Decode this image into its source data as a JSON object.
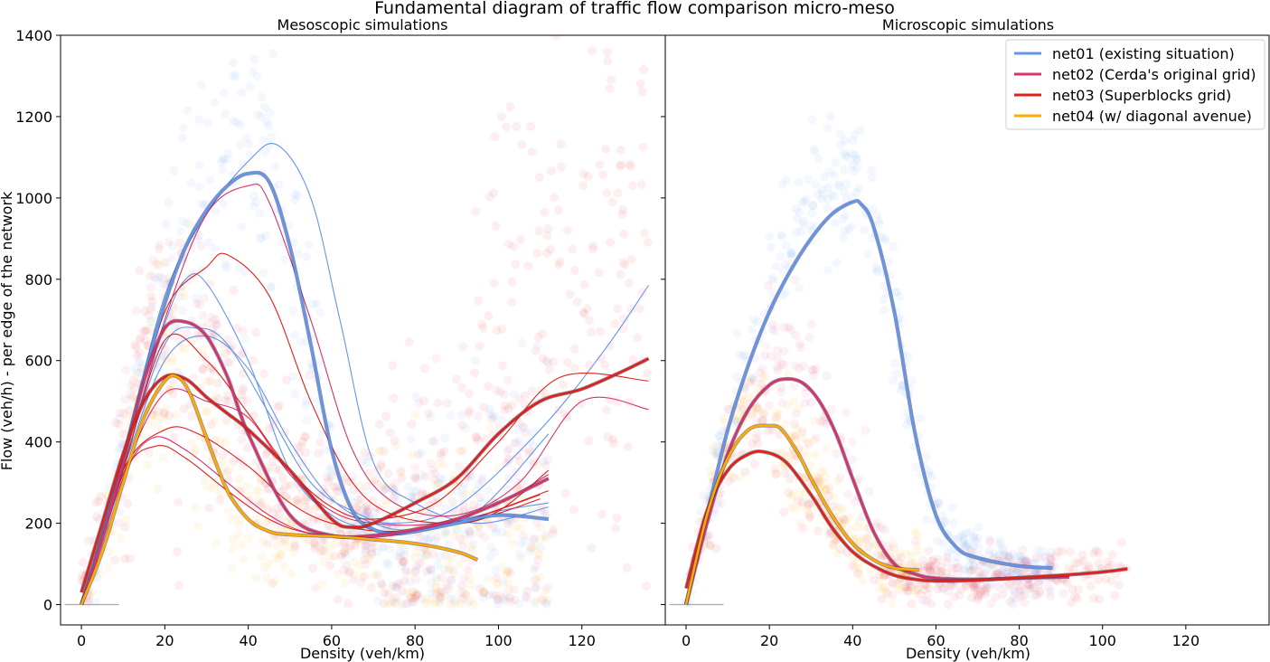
{
  "figure": {
    "title": "Fundamental diagram of traffic flow comparison micro-meso",
    "ylabel": "Flow (veh/h) - per edge of the network"
  },
  "colors": {
    "net01": "#6495ed",
    "net02": "#d6336c",
    "net03": "#e0201b",
    "net04": "#ffaa00"
  },
  "legend": {
    "placement": "upper-right of right panel",
    "items": [
      {
        "key": "net01",
        "label": "net01 (existing situation)"
      },
      {
        "key": "net02",
        "label": "net02 (Cerda's original grid)"
      },
      {
        "key": "net03",
        "label": "net03 (Superblocks grid)"
      },
      {
        "key": "net04",
        "label": "net04 (w/ diagonal avenue)"
      }
    ]
  },
  "chart_data": [
    {
      "type": "scatter",
      "title": "Mesoscopic simulations",
      "xlabel": "Density (veh/km)",
      "ylabel": "Flow (veh/h) - per edge of the network",
      "xlim": [
        -5,
        140
      ],
      "ylim": [
        -50,
        1400
      ],
      "xticks": [
        0,
        20,
        40,
        60,
        80,
        100,
        120
      ],
      "yticks": [
        0,
        200,
        400,
        600,
        800,
        1000,
        1200,
        1400
      ],
      "grid": false,
      "series": [
        {
          "key": "net01",
          "name": "net01 (existing situation)",
          "mean_x": [
            0,
            5,
            10,
            15,
            20,
            25,
            30,
            35,
            40,
            45,
            50,
            55,
            60,
            65,
            70,
            75,
            80,
            90,
            100,
            112
          ],
          "mean_y": [
            0,
            170,
            360,
            560,
            740,
            880,
            970,
            1030,
            1060,
            1040,
            880,
            640,
            380,
            230,
            185,
            175,
            180,
            200,
            220,
            210
          ],
          "runs": [
            {
              "x": [
                0,
                10,
                20,
                30,
                40,
                47,
                55,
                62,
                70,
                80,
                95,
                112
              ],
              "y": [
                0,
                360,
                760,
                960,
                1090,
                1130,
                1000,
                700,
                350,
                250,
                200,
                240
              ]
            },
            {
              "x": [
                0,
                10,
                20,
                25,
                30,
                40,
                50,
                60,
                70,
                80,
                95,
                112
              ],
              "y": [
                0,
                350,
                690,
                800,
                790,
                600,
                330,
                220,
                185,
                180,
                230,
                420
              ]
            },
            {
              "x": [
                0,
                10,
                20,
                28,
                35,
                45,
                55,
                65,
                75,
                90,
                110,
                125,
                136
              ],
              "y": [
                0,
                340,
                640,
                680,
                640,
                470,
                300,
                230,
                200,
                240,
                430,
                620,
                785
              ]
            },
            {
              "x": [
                0,
                10,
                20,
                30,
                40,
                50,
                60,
                70,
                80,
                100,
                112
              ],
              "y": [
                0,
                330,
                600,
                660,
                580,
                400,
                260,
                200,
                185,
                230,
                250
              ]
            }
          ],
          "cloud_peak": {
            "density": 47,
            "flow": 1280
          }
        },
        {
          "key": "net02",
          "name": "net02 (Cerda's original grid)",
          "mean_x": [
            0,
            5,
            10,
            15,
            20,
            25,
            30,
            35,
            40,
            50,
            60,
            70,
            80,
            90,
            100,
            112
          ],
          "mean_y": [
            0,
            160,
            350,
            550,
            680,
            695,
            660,
            560,
            420,
            220,
            170,
            170,
            185,
            210,
            250,
            310
          ],
          "runs": [
            {
              "x": [
                0,
                10,
                20,
                30,
                40,
                45,
                55,
                65,
                75,
                90,
                105,
                120,
                136
              ],
              "y": [
                0,
                330,
                700,
                960,
                1030,
                990,
                700,
                380,
                250,
                220,
                300,
                500,
                480
              ]
            },
            {
              "x": [
                0,
                10,
                20,
                30,
                40,
                50,
                60,
                70,
                85,
                100,
                112
              ],
              "y": [
                0,
                320,
                520,
                500,
                460,
                320,
                230,
                200,
                200,
                250,
                320
              ]
            },
            {
              "x": [
                0,
                10,
                17,
                25,
                35,
                45,
                55,
                70,
                90,
                110
              ],
              "y": [
                0,
                310,
                410,
                380,
                300,
                220,
                175,
                165,
                200,
                270
              ]
            }
          ],
          "cloud_peak": {
            "density": 28,
            "flow": 900
          }
        },
        {
          "key": "net03",
          "name": "net03 (Superblocks grid)",
          "mean_x": [
            0,
            5,
            10,
            15,
            20,
            25,
            30,
            35,
            40,
            50,
            60,
            65,
            70,
            80,
            90,
            100,
            110,
            120,
            130,
            136
          ],
          "mean_y": [
            30,
            200,
            370,
            500,
            560,
            555,
            510,
            470,
            430,
            330,
            210,
            190,
            200,
            250,
            310,
            420,
            500,
            530,
            575,
            605
          ],
          "runs": [
            {
              "x": [
                0,
                10,
                20,
                30,
                35,
                45,
                55,
                65,
                75,
                90,
                100,
                112
              ],
              "y": [
                0,
                350,
                720,
                830,
                860,
                760,
                500,
                300,
                220,
                200,
                230,
                330
              ]
            },
            {
              "x": [
                0,
                10,
                20,
                30,
                40,
                50,
                60,
                70,
                85,
                100,
                115,
                136
              ],
              "y": [
                0,
                330,
                650,
                600,
                470,
                330,
                240,
                210,
                250,
                400,
                560,
                550
              ]
            },
            {
              "x": [
                0,
                10,
                20,
                28,
                40,
                50,
                60,
                75,
                95,
                110
              ],
              "y": [
                0,
                330,
                430,
                420,
                340,
                250,
                200,
                180,
                210,
                260
              ]
            },
            {
              "x": [
                0,
                10,
                18,
                25,
                35,
                45,
                55,
                70,
                90,
                112
              ],
              "y": [
                0,
                320,
                390,
                360,
                280,
                210,
                175,
                170,
                200,
                280
              ]
            }
          ],
          "cloud_peak": {
            "density": 22,
            "flow": 950
          }
        },
        {
          "key": "net04",
          "name": "net04 (w/ diagonal avenue)",
          "mean_x": [
            0,
            5,
            10,
            15,
            20,
            23,
            26,
            30,
            35,
            40,
            45,
            50,
            60,
            70,
            80,
            90,
            95
          ],
          "mean_y": [
            0,
            130,
            300,
            460,
            550,
            560,
            520,
            410,
            280,
            210,
            180,
            172,
            168,
            160,
            150,
            130,
            110
          ],
          "runs": [],
          "cloud_peak": {
            "density": 25,
            "flow": 700
          }
        }
      ]
    },
    {
      "type": "scatter",
      "title": "Microscopic simulations",
      "xlabel": "Density (veh/km)",
      "ylabel": "",
      "xlim": [
        -5,
        140
      ],
      "ylim": [
        -50,
        1400
      ],
      "xticks": [
        0,
        20,
        40,
        60,
        80,
        100,
        120
      ],
      "yticks": [
        0,
        200,
        400,
        600,
        800,
        1000,
        1200,
        1400
      ],
      "grid": false,
      "series": [
        {
          "key": "net01",
          "name": "net01 (existing situation)",
          "mean_x": [
            0,
            5,
            10,
            15,
            20,
            25,
            30,
            35,
            40,
            42,
            45,
            50,
            55,
            60,
            65,
            70,
            80,
            88
          ],
          "mean_y": [
            0,
            220,
            430,
            590,
            720,
            820,
            900,
            960,
            990,
            985,
            930,
            720,
            420,
            220,
            140,
            115,
            95,
            90
          ],
          "runs": [],
          "cloud_peak": {
            "density": 43,
            "flow": 1130
          }
        },
        {
          "key": "net02",
          "name": "net02 (Cerda's original grid)",
          "mean_x": [
            0,
            5,
            10,
            15,
            20,
            24,
            28,
            32,
            36,
            40,
            45,
            50,
            55,
            60,
            70,
            80,
            92
          ],
          "mean_y": [
            0,
            200,
            370,
            480,
            540,
            555,
            545,
            500,
            420,
            310,
            180,
            100,
            75,
            65,
            62,
            65,
            68
          ],
          "runs": [],
          "cloud_peak": {
            "density": 26,
            "flow": 700
          }
        },
        {
          "key": "net03",
          "name": "net03 (Superblocks grid)",
          "mean_x": [
            0,
            5,
            10,
            15,
            19,
            24,
            30,
            35,
            40,
            45,
            50,
            55,
            60,
            70,
            80,
            90,
            100,
            106
          ],
          "mean_y": [
            40,
            230,
            330,
            370,
            375,
            350,
            270,
            190,
            130,
            95,
            72,
            62,
            58,
            60,
            66,
            72,
            80,
            88
          ],
          "runs": [],
          "cloud_peak": {
            "density": 20,
            "flow": 560
          }
        },
        {
          "key": "net04",
          "name": "net04 (w/ diagonal avenue)",
          "mean_x": [
            0,
            5,
            10,
            15,
            20,
            23,
            27,
            30,
            35,
            40,
            45,
            50,
            56
          ],
          "mean_y": [
            0,
            220,
            360,
            430,
            440,
            430,
            370,
            310,
            220,
            150,
            110,
            90,
            85
          ],
          "runs": [],
          "cloud_peak": {
            "density": 20,
            "flow": 560
          }
        }
      ]
    }
  ]
}
